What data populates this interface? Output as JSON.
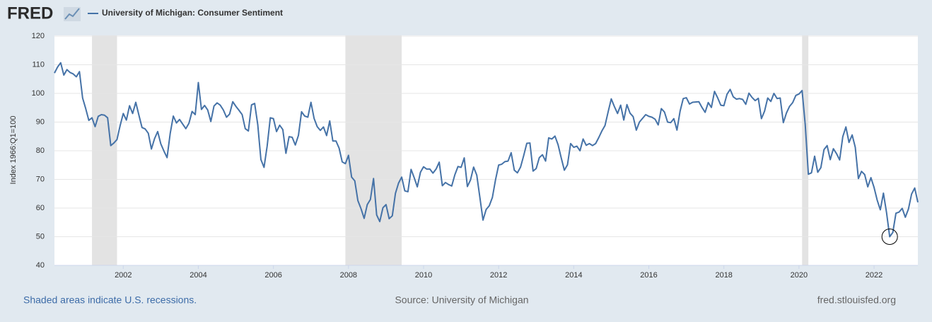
{
  "chart_data": {
    "type": "line",
    "logo": "FRED",
    "y_label": "Index 1966:Q1=100",
    "note": "Shaded areas indicate U.S. recessions.",
    "source": "Source: University of Michigan",
    "site": "fred.stlouisfed.org",
    "xlim": [
      2000.167,
      2023.167
    ],
    "xticks": [
      2002,
      2004,
      2006,
      2008,
      2010,
      2012,
      2014,
      2016,
      2018,
      2020,
      2022
    ],
    "ylim": [
      40,
      120
    ],
    "yticks": [
      40,
      50,
      60,
      70,
      80,
      90,
      100,
      110,
      120
    ],
    "grid": true,
    "recessions": [
      [
        2001.167,
        2001.833
      ],
      [
        2007.917,
        2009.417
      ],
      [
        2020.083,
        2020.25
      ]
    ],
    "x": [
      2000.167,
      2000.25,
      2000.333,
      2000.417,
      2000.5,
      2000.583,
      2000.667,
      2000.75,
      2000.833,
      2000.917,
      2001,
      2001.083,
      2001.167,
      2001.25,
      2001.333,
      2001.417,
      2001.5,
      2001.583,
      2001.667,
      2001.75,
      2001.833,
      2001.917,
      2002,
      2002.083,
      2002.167,
      2002.25,
      2002.333,
      2002.417,
      2002.5,
      2002.583,
      2002.667,
      2002.75,
      2002.833,
      2002.917,
      2003,
      2003.083,
      2003.167,
      2003.25,
      2003.333,
      2003.417,
      2003.5,
      2003.583,
      2003.667,
      2003.75,
      2003.833,
      2003.917,
      2004,
      2004.083,
      2004.167,
      2004.25,
      2004.333,
      2004.417,
      2004.5,
      2004.583,
      2004.667,
      2004.75,
      2004.833,
      2004.917,
      2005,
      2005.083,
      2005.167,
      2005.25,
      2005.333,
      2005.417,
      2005.5,
      2005.583,
      2005.667,
      2005.75,
      2005.833,
      2005.917,
      2006,
      2006.083,
      2006.167,
      2006.25,
      2006.333,
      2006.417,
      2006.5,
      2006.583,
      2006.667,
      2006.75,
      2006.833,
      2006.917,
      2007,
      2007.083,
      2007.167,
      2007.25,
      2007.333,
      2007.417,
      2007.5,
      2007.583,
      2007.667,
      2007.75,
      2007.833,
      2007.917,
      2008,
      2008.083,
      2008.167,
      2008.25,
      2008.333,
      2008.417,
      2008.5,
      2008.583,
      2008.667,
      2008.75,
      2008.833,
      2008.917,
      2009,
      2009.083,
      2009.167,
      2009.25,
      2009.333,
      2009.417,
      2009.5,
      2009.583,
      2009.667,
      2009.75,
      2009.833,
      2009.917,
      2010,
      2010.083,
      2010.167,
      2010.25,
      2010.333,
      2010.417,
      2010.5,
      2010.583,
      2010.667,
      2010.75,
      2010.833,
      2010.917,
      2011,
      2011.083,
      2011.167,
      2011.25,
      2011.333,
      2011.417,
      2011.5,
      2011.583,
      2011.667,
      2011.75,
      2011.833,
      2011.917,
      2012,
      2012.083,
      2012.167,
      2012.25,
      2012.333,
      2012.417,
      2012.5,
      2012.583,
      2012.667,
      2012.75,
      2012.833,
      2012.917,
      2013,
      2013.083,
      2013.167,
      2013.25,
      2013.333,
      2013.417,
      2013.5,
      2013.583,
      2013.667,
      2013.75,
      2013.833,
      2013.917,
      2014,
      2014.083,
      2014.167,
      2014.25,
      2014.333,
      2014.417,
      2014.5,
      2014.583,
      2014.667,
      2014.75,
      2014.833,
      2014.917,
      2015,
      2015.083,
      2015.167,
      2015.25,
      2015.333,
      2015.417,
      2015.5,
      2015.583,
      2015.667,
      2015.75,
      2015.833,
      2015.917,
      2016,
      2016.083,
      2016.167,
      2016.25,
      2016.333,
      2016.417,
      2016.5,
      2016.583,
      2016.667,
      2016.75,
      2016.833,
      2016.917,
      2017,
      2017.083,
      2017.167,
      2017.25,
      2017.333,
      2017.417,
      2017.5,
      2017.583,
      2017.667,
      2017.75,
      2017.833,
      2017.917,
      2018,
      2018.083,
      2018.167,
      2018.25,
      2018.333,
      2018.417,
      2018.5,
      2018.583,
      2018.667,
      2018.75,
      2018.833,
      2018.917,
      2019,
      2019.083,
      2019.167,
      2019.25,
      2019.333,
      2019.417,
      2019.5,
      2019.583,
      2019.667,
      2019.75,
      2019.833,
      2019.917,
      2020,
      2020.083,
      2020.167,
      2020.25,
      2020.333,
      2020.417,
      2020.5,
      2020.583,
      2020.667,
      2020.75,
      2020.833,
      2020.917,
      2021,
      2021.083,
      2021.167,
      2021.25,
      2021.333,
      2021.417,
      2021.5,
      2021.583,
      2021.667,
      2021.75,
      2021.833,
      2021.917,
      2022,
      2022.083,
      2022.167,
      2022.25,
      2022.333,
      2022.417,
      2022.5,
      2022.583,
      2022.667,
      2022.75,
      2022.833,
      2022.917,
      2023,
      2023.083,
      2023.167
    ],
    "series": [
      {
        "name": "University of Michigan: Consumer Sentiment",
        "color": "#4572a7",
        "values": [
          107.1,
          109.2,
          110.7,
          106.4,
          108.3,
          107.3,
          106.8,
          105.8,
          107.6,
          98.4,
          94.7,
          90.6,
          91.5,
          88.4,
          92.0,
          92.6,
          92.4,
          91.5,
          81.8,
          82.7,
          83.9,
          88.8,
          93.0,
          90.7,
          95.7,
          93.0,
          96.9,
          92.4,
          88.1,
          87.6,
          86.1,
          80.6,
          84.2,
          86.7,
          82.4,
          79.9,
          77.6,
          86.0,
          92.1,
          89.7,
          90.9,
          89.3,
          87.7,
          89.6,
          93.7,
          92.6,
          103.8,
          94.4,
          95.8,
          94.2,
          90.2,
          95.6,
          96.7,
          95.9,
          94.2,
          91.7,
          92.8,
          97.1,
          95.5,
          94.1,
          92.6,
          87.7,
          86.9,
          96.0,
          96.5,
          89.1,
          76.9,
          74.2,
          81.6,
          91.5,
          91.2,
          86.7,
          88.9,
          87.4,
          79.1,
          84.9,
          84.7,
          82.0,
          85.4,
          93.6,
          92.1,
          91.7,
          96.9,
          91.3,
          88.4,
          87.1,
          88.3,
          85.3,
          90.4,
          83.4,
          83.4,
          80.9,
          76.1,
          75.5,
          78.4,
          70.8,
          69.5,
          62.6,
          59.8,
          56.4,
          61.2,
          63.0,
          70.3,
          57.6,
          55.3,
          60.1,
          61.2,
          56.3,
          57.3,
          65.1,
          68.7,
          70.8,
          66.0,
          65.7,
          73.5,
          70.6,
          67.4,
          72.5,
          74.4,
          73.6,
          73.6,
          72.2,
          73.6,
          76.0,
          67.8,
          68.9,
          68.2,
          67.7,
          71.6,
          74.5,
          74.2,
          77.5,
          67.5,
          69.8,
          74.3,
          71.5,
          63.7,
          55.8,
          59.5,
          60.8,
          63.7,
          69.9,
          75.0,
          75.3,
          76.2,
          76.4,
          79.3,
          73.2,
          72.3,
          74.3,
          78.3,
          82.6,
          82.7,
          72.9,
          73.8,
          77.6,
          78.6,
          76.4,
          84.5,
          84.1,
          85.1,
          82.1,
          77.5,
          73.2,
          75.1,
          82.5,
          81.2,
          81.6,
          80.0,
          84.1,
          81.9,
          82.5,
          81.8,
          82.5,
          84.6,
          86.9,
          88.8,
          93.6,
          98.1,
          95.4,
          93.0,
          95.9,
          90.7,
          96.1,
          93.1,
          91.9,
          87.2,
          90.0,
          91.3,
          92.6,
          92.0,
          91.7,
          91.0,
          89.0,
          94.7,
          93.5,
          90.0,
          89.8,
          91.2,
          87.2,
          93.8,
          98.2,
          98.5,
          96.3,
          96.9,
          97.0,
          97.1,
          95.1,
          93.4,
          96.8,
          95.1,
          100.7,
          98.5,
          95.9,
          95.7,
          99.7,
          101.4,
          98.8,
          98.0,
          98.2,
          97.9,
          96.2,
          100.1,
          98.6,
          97.5,
          98.3,
          91.2,
          93.8,
          98.4,
          97.2,
          100.0,
          98.2,
          98.4,
          89.8,
          93.2,
          95.5,
          96.8,
          99.3,
          99.8,
          101.0,
          89.1,
          71.8,
          72.3,
          78.1,
          72.5,
          74.1,
          80.4,
          81.8,
          76.9,
          80.7,
          79.0,
          76.8,
          84.9,
          88.3,
          82.9,
          85.5,
          81.2,
          70.3,
          72.8,
          71.7,
          67.4,
          70.6,
          67.2,
          62.8,
          59.4,
          65.2,
          58.4,
          50.0,
          51.5,
          58.2,
          58.6,
          59.9,
          56.8,
          59.7,
          64.9,
          67.0,
          62.0
        ]
      }
    ],
    "highlight": 267
  }
}
